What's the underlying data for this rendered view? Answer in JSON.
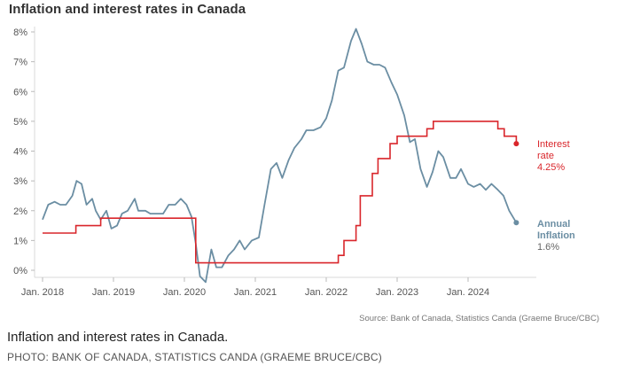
{
  "chart_data": {
    "type": "line",
    "title": "Inflation and interest rates in Canada",
    "xlabel": "",
    "ylabel": "",
    "y_unit": "%",
    "xlim": [
      2018.0,
      2024.85
    ],
    "ylim": [
      0,
      8
    ],
    "y_ticks": [
      0,
      1,
      2,
      3,
      4,
      5,
      6,
      7,
      8
    ],
    "y_tick_labels": [
      "0%",
      "1%",
      "2%",
      "3%",
      "4%",
      "5%",
      "6%",
      "7%",
      "8%"
    ],
    "x_ticks": [
      2018,
      2019,
      2020,
      2021,
      2022,
      2023,
      2024
    ],
    "x_tick_labels": [
      "Jan. 2018",
      "Jan. 2019",
      "Jan. 2020",
      "Jan. 2021",
      "Jan. 2022",
      "Jan. 2023",
      "Jan. 2024"
    ],
    "grid": false,
    "series": [
      {
        "name": "Interest rate",
        "label_lines": [
          "Interest",
          "rate"
        ],
        "value_label": "4.25%",
        "color": "#d9262b",
        "step": true,
        "points": [
          [
            2018.0,
            1.25
          ],
          [
            2018.47,
            1.25
          ],
          [
            2018.47,
            1.5
          ],
          [
            2018.82,
            1.5
          ],
          [
            2018.82,
            1.75
          ],
          [
            2020.16,
            1.75
          ],
          [
            2020.16,
            0.25
          ],
          [
            2022.17,
            0.25
          ],
          [
            2022.17,
            0.5
          ],
          [
            2022.25,
            0.5
          ],
          [
            2022.25,
            1.0
          ],
          [
            2022.42,
            1.0
          ],
          [
            2022.42,
            1.5
          ],
          [
            2022.48,
            1.5
          ],
          [
            2022.48,
            2.5
          ],
          [
            2022.65,
            2.5
          ],
          [
            2022.65,
            3.25
          ],
          [
            2022.73,
            3.25
          ],
          [
            2022.73,
            3.75
          ],
          [
            2022.9,
            3.75
          ],
          [
            2022.9,
            4.25
          ],
          [
            2023.0,
            4.25
          ],
          [
            2023.0,
            4.5
          ],
          [
            2023.42,
            4.5
          ],
          [
            2023.42,
            4.75
          ],
          [
            2023.51,
            4.75
          ],
          [
            2023.51,
            5.0
          ],
          [
            2024.42,
            5.0
          ],
          [
            2024.42,
            4.75
          ],
          [
            2024.51,
            4.75
          ],
          [
            2024.51,
            4.5
          ],
          [
            2024.68,
            4.5
          ],
          [
            2024.68,
            4.25
          ]
        ]
      },
      {
        "name": "Annual Inflation",
        "label_lines": [
          "Annual",
          "Inflation"
        ],
        "value_label": "1.6%",
        "color": "#6b8ea3",
        "step": false,
        "points": [
          [
            2018.0,
            1.7
          ],
          [
            2018.08,
            2.2
          ],
          [
            2018.17,
            2.3
          ],
          [
            2018.25,
            2.2
          ],
          [
            2018.33,
            2.2
          ],
          [
            2018.42,
            2.5
          ],
          [
            2018.48,
            3.0
          ],
          [
            2018.55,
            2.9
          ],
          [
            2018.62,
            2.2
          ],
          [
            2018.7,
            2.4
          ],
          [
            2018.75,
            2.0
          ],
          [
            2018.82,
            1.7
          ],
          [
            2018.9,
            2.0
          ],
          [
            2018.97,
            1.4
          ],
          [
            2019.05,
            1.5
          ],
          [
            2019.12,
            1.9
          ],
          [
            2019.2,
            2.0
          ],
          [
            2019.3,
            2.4
          ],
          [
            2019.35,
            2.0
          ],
          [
            2019.45,
            2.0
          ],
          [
            2019.52,
            1.9
          ],
          [
            2019.62,
            1.9
          ],
          [
            2019.7,
            1.9
          ],
          [
            2019.78,
            2.2
          ],
          [
            2019.87,
            2.2
          ],
          [
            2019.95,
            2.4
          ],
          [
            2020.03,
            2.2
          ],
          [
            2020.1,
            1.8
          ],
          [
            2020.16,
            0.9
          ],
          [
            2020.22,
            -0.2
          ],
          [
            2020.3,
            -0.4
          ],
          [
            2020.38,
            0.7
          ],
          [
            2020.45,
            0.1
          ],
          [
            2020.53,
            0.1
          ],
          [
            2020.62,
            0.5
          ],
          [
            2020.7,
            0.7
          ],
          [
            2020.78,
            1.0
          ],
          [
            2020.85,
            0.7
          ],
          [
            2020.95,
            1.0
          ],
          [
            2021.05,
            1.1
          ],
          [
            2021.13,
            2.2
          ],
          [
            2021.22,
            3.4
          ],
          [
            2021.3,
            3.6
          ],
          [
            2021.38,
            3.1
          ],
          [
            2021.47,
            3.7
          ],
          [
            2021.55,
            4.1
          ],
          [
            2021.65,
            4.4
          ],
          [
            2021.72,
            4.7
          ],
          [
            2021.82,
            4.7
          ],
          [
            2021.92,
            4.8
          ],
          [
            2022.0,
            5.1
          ],
          [
            2022.08,
            5.7
          ],
          [
            2022.17,
            6.7
          ],
          [
            2022.25,
            6.8
          ],
          [
            2022.35,
            7.7
          ],
          [
            2022.42,
            8.1
          ],
          [
            2022.5,
            7.6
          ],
          [
            2022.58,
            7.0
          ],
          [
            2022.67,
            6.9
          ],
          [
            2022.75,
            6.9
          ],
          [
            2022.83,
            6.8
          ],
          [
            2022.92,
            6.3
          ],
          [
            2023.0,
            5.9
          ],
          [
            2023.1,
            5.2
          ],
          [
            2023.18,
            4.3
          ],
          [
            2023.25,
            4.4
          ],
          [
            2023.33,
            3.4
          ],
          [
            2023.42,
            2.8
          ],
          [
            2023.5,
            3.3
          ],
          [
            2023.58,
            4.0
          ],
          [
            2023.65,
            3.8
          ],
          [
            2023.75,
            3.1
          ],
          [
            2023.83,
            3.1
          ],
          [
            2023.9,
            3.4
          ],
          [
            2024.0,
            2.9
          ],
          [
            2024.08,
            2.8
          ],
          [
            2024.17,
            2.9
          ],
          [
            2024.25,
            2.7
          ],
          [
            2024.33,
            2.9
          ],
          [
            2024.42,
            2.7
          ],
          [
            2024.5,
            2.5
          ],
          [
            2024.58,
            2.0
          ],
          [
            2024.68,
            1.6
          ]
        ]
      }
    ],
    "source": "Source: Bank of Canada, Statistics Canda (Graeme Bruce/CBC)"
  },
  "caption": "Inflation and interest rates in Canada.",
  "credit": "PHOTO: BANK OF CANADA, STATISTICS CANDA (GRAEME BRUCE/CBC)"
}
